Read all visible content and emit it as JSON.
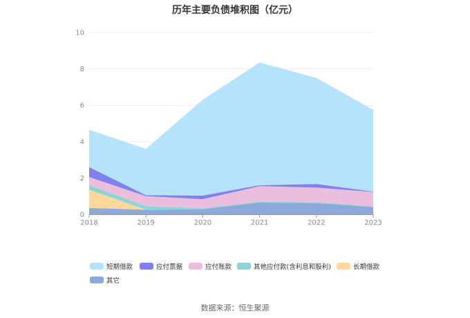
{
  "title": "历年主要负债堆积图（亿元）",
  "source": "数据来源：恒生聚源",
  "chart_data": {
    "type": "area",
    "stacked": true,
    "title": "历年主要负债堆积图（亿元）",
    "xlabel": "",
    "ylabel": "",
    "categories": [
      "2018",
      "2019",
      "2020",
      "2021",
      "2022",
      "2023"
    ],
    "ylim": [
      0,
      10
    ],
    "yticks": [
      0,
      2,
      4,
      6,
      8,
      10
    ],
    "grid": true,
    "legend_position": "bottom",
    "series": [
      {
        "name": "其它",
        "color": "#8ea9d9",
        "values": [
          0.35,
          0.25,
          0.28,
          0.65,
          0.62,
          0.4
        ]
      },
      {
        "name": "长期借款",
        "color": "#ffd89a",
        "values": [
          1.0,
          0.0,
          0.0,
          0.0,
          0.0,
          0.0
        ]
      },
      {
        "name": "其他应付款(含利息和股利)",
        "color": "#8ad6d6",
        "values": [
          0.25,
          0.2,
          0.05,
          0.05,
          0.05,
          0.03
        ]
      },
      {
        "name": "应付账款",
        "color": "#ebbede",
        "values": [
          0.45,
          0.55,
          0.5,
          0.85,
          0.8,
          0.8
        ]
      },
      {
        "name": "应付票据",
        "color": "#8080ee",
        "values": [
          0.55,
          0.05,
          0.2,
          0.05,
          0.2,
          0.02
        ]
      },
      {
        "name": "短期借款",
        "color": "#b5e3fb",
        "values": [
          2.05,
          2.55,
          5.27,
          6.75,
          5.83,
          4.5
        ]
      }
    ],
    "legend_order": [
      "短期借款",
      "应付票据",
      "应付账款",
      "其他应付款(含利息和股利)",
      "长期借款",
      "其它"
    ]
  }
}
